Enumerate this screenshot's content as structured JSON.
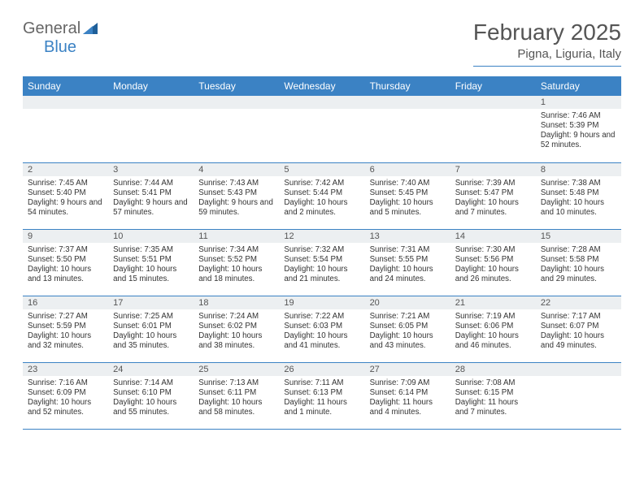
{
  "logo": {
    "general": "General",
    "blue": "Blue"
  },
  "title": "February 2025",
  "location": "Pigna, Liguria, Italy",
  "colors": {
    "header_bg": "#3b82c4",
    "header_text": "#ffffff",
    "daynum_bg": "#eceff1",
    "border": "#3b82c4",
    "body_text": "#333333",
    "title_text": "#555555"
  },
  "calendar": {
    "weekdays": [
      "Sunday",
      "Monday",
      "Tuesday",
      "Wednesday",
      "Thursday",
      "Friday",
      "Saturday"
    ],
    "weeks": [
      [
        null,
        null,
        null,
        null,
        null,
        null,
        {
          "d": "1",
          "sr": "Sunrise: 7:46 AM",
          "ss": "Sunset: 5:39 PM",
          "dl": "Daylight: 9 hours and 52 minutes."
        }
      ],
      [
        {
          "d": "2",
          "sr": "Sunrise: 7:45 AM",
          "ss": "Sunset: 5:40 PM",
          "dl": "Daylight: 9 hours and 54 minutes."
        },
        {
          "d": "3",
          "sr": "Sunrise: 7:44 AM",
          "ss": "Sunset: 5:41 PM",
          "dl": "Daylight: 9 hours and 57 minutes."
        },
        {
          "d": "4",
          "sr": "Sunrise: 7:43 AM",
          "ss": "Sunset: 5:43 PM",
          "dl": "Daylight: 9 hours and 59 minutes."
        },
        {
          "d": "5",
          "sr": "Sunrise: 7:42 AM",
          "ss": "Sunset: 5:44 PM",
          "dl": "Daylight: 10 hours and 2 minutes."
        },
        {
          "d": "6",
          "sr": "Sunrise: 7:40 AM",
          "ss": "Sunset: 5:45 PM",
          "dl": "Daylight: 10 hours and 5 minutes."
        },
        {
          "d": "7",
          "sr": "Sunrise: 7:39 AM",
          "ss": "Sunset: 5:47 PM",
          "dl": "Daylight: 10 hours and 7 minutes."
        },
        {
          "d": "8",
          "sr": "Sunrise: 7:38 AM",
          "ss": "Sunset: 5:48 PM",
          "dl": "Daylight: 10 hours and 10 minutes."
        }
      ],
      [
        {
          "d": "9",
          "sr": "Sunrise: 7:37 AM",
          "ss": "Sunset: 5:50 PM",
          "dl": "Daylight: 10 hours and 13 minutes."
        },
        {
          "d": "10",
          "sr": "Sunrise: 7:35 AM",
          "ss": "Sunset: 5:51 PM",
          "dl": "Daylight: 10 hours and 15 minutes."
        },
        {
          "d": "11",
          "sr": "Sunrise: 7:34 AM",
          "ss": "Sunset: 5:52 PM",
          "dl": "Daylight: 10 hours and 18 minutes."
        },
        {
          "d": "12",
          "sr": "Sunrise: 7:32 AM",
          "ss": "Sunset: 5:54 PM",
          "dl": "Daylight: 10 hours and 21 minutes."
        },
        {
          "d": "13",
          "sr": "Sunrise: 7:31 AM",
          "ss": "Sunset: 5:55 PM",
          "dl": "Daylight: 10 hours and 24 minutes."
        },
        {
          "d": "14",
          "sr": "Sunrise: 7:30 AM",
          "ss": "Sunset: 5:56 PM",
          "dl": "Daylight: 10 hours and 26 minutes."
        },
        {
          "d": "15",
          "sr": "Sunrise: 7:28 AM",
          "ss": "Sunset: 5:58 PM",
          "dl": "Daylight: 10 hours and 29 minutes."
        }
      ],
      [
        {
          "d": "16",
          "sr": "Sunrise: 7:27 AM",
          "ss": "Sunset: 5:59 PM",
          "dl": "Daylight: 10 hours and 32 minutes."
        },
        {
          "d": "17",
          "sr": "Sunrise: 7:25 AM",
          "ss": "Sunset: 6:01 PM",
          "dl": "Daylight: 10 hours and 35 minutes."
        },
        {
          "d": "18",
          "sr": "Sunrise: 7:24 AM",
          "ss": "Sunset: 6:02 PM",
          "dl": "Daylight: 10 hours and 38 minutes."
        },
        {
          "d": "19",
          "sr": "Sunrise: 7:22 AM",
          "ss": "Sunset: 6:03 PM",
          "dl": "Daylight: 10 hours and 41 minutes."
        },
        {
          "d": "20",
          "sr": "Sunrise: 7:21 AM",
          "ss": "Sunset: 6:05 PM",
          "dl": "Daylight: 10 hours and 43 minutes."
        },
        {
          "d": "21",
          "sr": "Sunrise: 7:19 AM",
          "ss": "Sunset: 6:06 PM",
          "dl": "Daylight: 10 hours and 46 minutes."
        },
        {
          "d": "22",
          "sr": "Sunrise: 7:17 AM",
          "ss": "Sunset: 6:07 PM",
          "dl": "Daylight: 10 hours and 49 minutes."
        }
      ],
      [
        {
          "d": "23",
          "sr": "Sunrise: 7:16 AM",
          "ss": "Sunset: 6:09 PM",
          "dl": "Daylight: 10 hours and 52 minutes."
        },
        {
          "d": "24",
          "sr": "Sunrise: 7:14 AM",
          "ss": "Sunset: 6:10 PM",
          "dl": "Daylight: 10 hours and 55 minutes."
        },
        {
          "d": "25",
          "sr": "Sunrise: 7:13 AM",
          "ss": "Sunset: 6:11 PM",
          "dl": "Daylight: 10 hours and 58 minutes."
        },
        {
          "d": "26",
          "sr": "Sunrise: 7:11 AM",
          "ss": "Sunset: 6:13 PM",
          "dl": "Daylight: 11 hours and 1 minute."
        },
        {
          "d": "27",
          "sr": "Sunrise: 7:09 AM",
          "ss": "Sunset: 6:14 PM",
          "dl": "Daylight: 11 hours and 4 minutes."
        },
        {
          "d": "28",
          "sr": "Sunrise: 7:08 AM",
          "ss": "Sunset: 6:15 PM",
          "dl": "Daylight: 11 hours and 7 minutes."
        },
        null
      ]
    ]
  }
}
